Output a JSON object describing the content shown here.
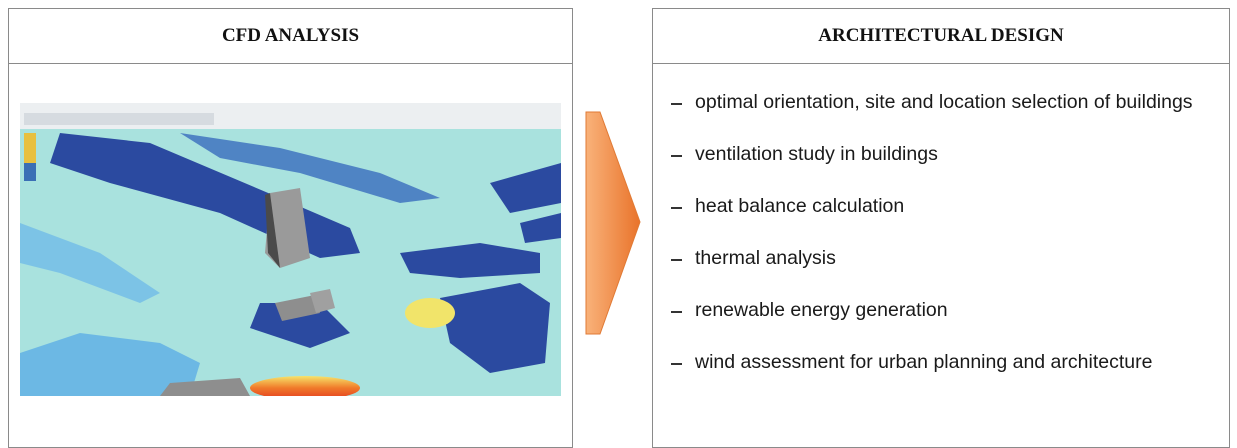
{
  "left": {
    "title": "CFD ANALYSIS"
  },
  "right": {
    "title": "ARCHITECTURAL DESIGN",
    "items": [
      "optimal orientation, site and location selection of buildings",
      "ventilation study in buildings",
      "heat balance calculation",
      "thermal analysis",
      "renewable energy generation",
      "wind assessment for urban planning and architecture"
    ]
  }
}
